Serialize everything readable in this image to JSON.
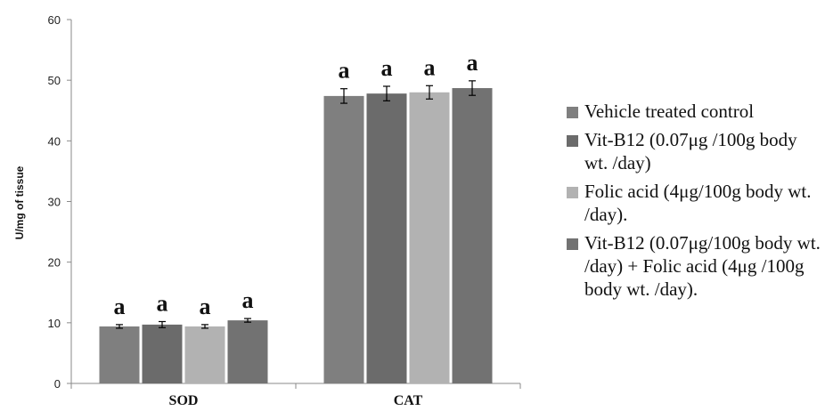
{
  "chart_data": {
    "type": "bar",
    "categories": [
      "SOD",
      "CAT"
    ],
    "ylabel": "U/mg of tissue",
    "ylim": [
      0,
      60
    ],
    "yticks": [
      0,
      10,
      20,
      30,
      40,
      50,
      60
    ],
    "grid": false,
    "legend_position": "right",
    "series": [
      {
        "name": "Vehicle treated control",
        "values": [
          9.4,
          47.4
        ],
        "errors": [
          0.3,
          1.2
        ],
        "labels": [
          "a",
          "a"
        ],
        "color": "#7f7f7f"
      },
      {
        "name": "Vit-B12 (0.07μg /100g body wt. /day)",
        "values": [
          9.7,
          47.8
        ],
        "errors": [
          0.5,
          1.2
        ],
        "labels": [
          "a",
          "a"
        ],
        "color": "#6b6b6b"
      },
      {
        "name": "Folic acid (4μg/100g body wt. /day).",
        "values": [
          9.4,
          48.0
        ],
        "errors": [
          0.3,
          1.1
        ],
        "labels": [
          "a",
          "a"
        ],
        "color": "#b2b2b2"
      },
      {
        "name": "Vit-B12 (0.07μg/100g body wt. /day) + Folic acid (4μg /100g body wt. /day).",
        "values": [
          10.4,
          48.7
        ],
        "errors": [
          0.3,
          1.2
        ],
        "labels": [
          "a",
          "a"
        ],
        "color": "#727272"
      }
    ]
  },
  "legend": {
    "items": [
      {
        "label": "Vehicle treated control",
        "color": "#7f7f7f"
      },
      {
        "label": "Vit-B12 (0.07μg /100g body wt. /day)",
        "color": "#6b6b6b"
      },
      {
        "label": "Folic acid (4μg/100g body wt. /day).",
        "color": "#b2b2b2"
      },
      {
        "label": "Vit-B12 (0.07μg/100g body wt. /day) + Folic acid (4μg /100g body wt. /day).",
        "color": "#727272"
      }
    ]
  }
}
